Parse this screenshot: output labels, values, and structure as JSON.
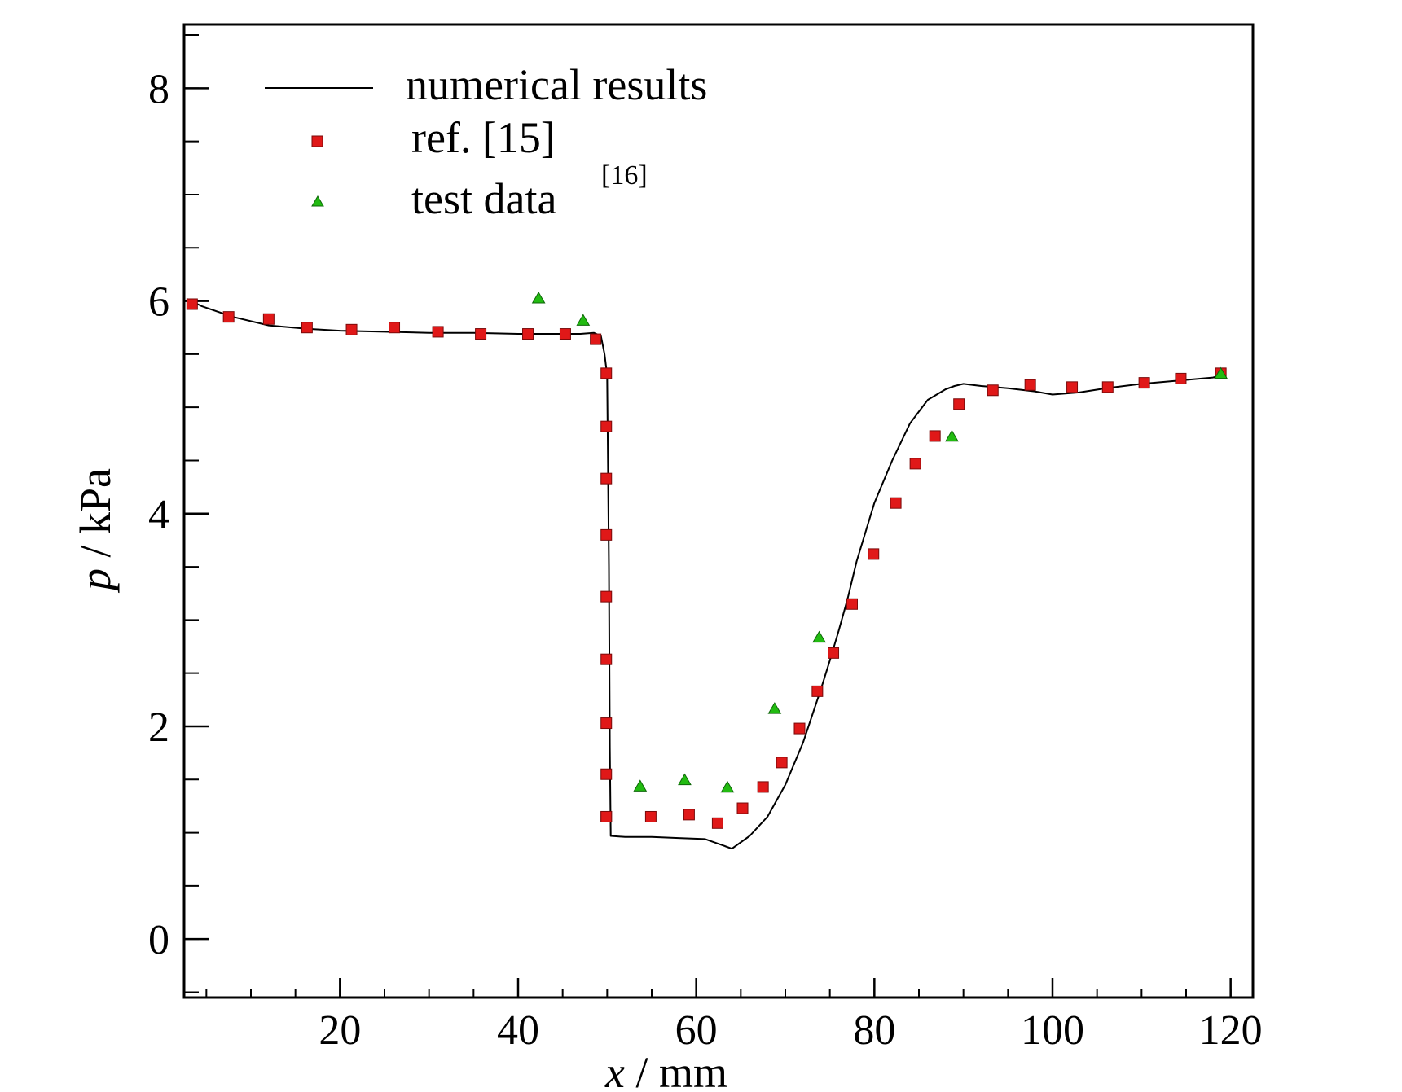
{
  "chart_data": {
    "type": "line",
    "title": "",
    "xlabel_var": "x",
    "xlabel_unit": " / mm",
    "ylabel_var": "p",
    "ylabel_unit": " / kPa",
    "xlim": [
      2.5,
      122.5
    ],
    "ylim": [
      -0.55,
      8.6
    ],
    "x_ticks": [
      20,
      40,
      60,
      80,
      100,
      120
    ],
    "x_tick_labels": [
      "20",
      "40",
      "60",
      "80",
      "100",
      "120"
    ],
    "x_minor_step": 5,
    "y_ticks": [
      0,
      2,
      4,
      6,
      8
    ],
    "y_tick_labels": [
      "0",
      "2",
      "4",
      "6",
      "8"
    ],
    "y_minor_step": 0.5,
    "grid": false,
    "legend_position": "top-left",
    "series": [
      {
        "name": "numerical results",
        "kind": "line",
        "color": "#000000",
        "x": [
          2.8,
          4.5,
          8,
          12,
          16,
          20,
          25,
          30,
          35,
          40,
          44,
          47,
          48.5,
          49.3,
          49.7,
          50.0,
          50.2,
          50.3,
          50.4,
          52,
          55,
          58,
          61,
          63,
          64,
          66,
          68,
          70,
          72,
          74,
          75,
          76,
          77,
          78,
          80,
          82,
          84,
          86,
          88,
          89,
          90,
          92,
          95,
          98,
          100,
          103,
          106,
          110,
          114,
          118,
          119
        ],
        "y": [
          6.02,
          5.95,
          5.85,
          5.77,
          5.74,
          5.72,
          5.71,
          5.7,
          5.7,
          5.69,
          5.69,
          5.69,
          5.7,
          5.67,
          5.5,
          5.3,
          3.5,
          1.8,
          0.97,
          0.96,
          0.96,
          0.95,
          0.94,
          0.88,
          0.85,
          0.97,
          1.15,
          1.45,
          1.85,
          2.35,
          2.62,
          2.9,
          3.2,
          3.55,
          4.1,
          4.5,
          4.85,
          5.07,
          5.17,
          5.2,
          5.22,
          5.2,
          5.18,
          5.15,
          5.12,
          5.14,
          5.18,
          5.22,
          5.25,
          5.28,
          5.3
        ]
      },
      {
        "name": "ref. [15]",
        "kind": "scatter",
        "marker": "square",
        "color": "#e01818",
        "x": [
          3.4,
          7.5,
          12,
          16.3,
          21.3,
          26.1,
          31,
          35.8,
          41.1,
          45.3,
          48.7,
          49.9,
          49.9,
          49.9,
          49.9,
          49.9,
          49.9,
          49.9,
          49.9,
          49.9,
          49.9,
          54.9,
          59.2,
          62.4,
          65.2,
          67.5,
          69.6,
          71.6,
          73.6,
          75.4,
          77.5,
          79.9,
          82.4,
          84.6,
          86.8,
          89.5,
          93.3,
          97.5,
          102.2,
          106.2,
          110.3,
          114.4,
          118.9
        ],
        "y": [
          5.97,
          5.85,
          5.83,
          5.75,
          5.73,
          5.75,
          5.71,
          5.69,
          5.69,
          5.69,
          5.64,
          5.32,
          4.82,
          4.33,
          3.8,
          3.22,
          2.63,
          2.03,
          1.55,
          1.15,
          1.15,
          1.15,
          1.17,
          1.09,
          1.23,
          1.43,
          1.66,
          1.98,
          2.33,
          2.69,
          3.15,
          3.62,
          4.1,
          4.47,
          4.73,
          5.03,
          5.16,
          5.21,
          5.19,
          5.19,
          5.23,
          5.27,
          5.32
        ]
      },
      {
        "name": "test data",
        "name_sup": "[16]",
        "kind": "scatter",
        "marker": "triangle",
        "color": "#22bb11",
        "x": [
          42.3,
          47.3,
          53.7,
          58.7,
          63.5,
          68.8,
          73.8,
          88.7,
          118.9
        ],
        "y": [
          6.02,
          5.81,
          1.43,
          1.49,
          1.42,
          2.16,
          2.83,
          4.72,
          5.31
        ]
      }
    ]
  }
}
